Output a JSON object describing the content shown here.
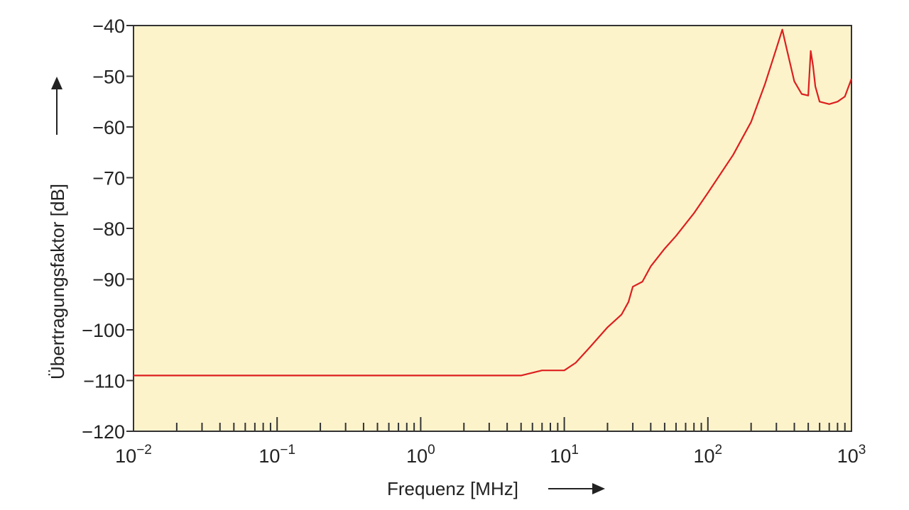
{
  "chart_data": {
    "type": "line",
    "xscale": "log",
    "xlim": [
      0.01,
      1000
    ],
    "ylim": [
      -120,
      -40
    ],
    "xlabel": "Frequenz [MHz]",
    "ylabel": "Übertragungsfaktor [dB]",
    "x_tick_labels": [
      {
        "base": "10",
        "exp": "−2"
      },
      {
        "base": "10",
        "exp": "−1"
      },
      {
        "base": "10",
        "exp": "0"
      },
      {
        "base": "10",
        "exp": "1"
      },
      {
        "base": "10",
        "exp": "2"
      },
      {
        "base": "10",
        "exp": "3"
      }
    ],
    "y_ticks": [
      -40,
      -50,
      -60,
      -70,
      -80,
      -90,
      -100,
      -110,
      -120
    ],
    "y_tick_labels": [
      "−40",
      "−50",
      "−60",
      "−70",
      "−80",
      "−90",
      "−100",
      "−110",
      "−120"
    ],
    "colors": {
      "plot_bg": "#fcf3cb",
      "line": "#dd1f1f",
      "axis": "#333333"
    },
    "series": [
      {
        "name": "Übertragungsfaktor",
        "x": [
          0.01,
          0.02,
          0.05,
          0.1,
          0.2,
          0.5,
          1,
          2,
          5,
          7,
          10,
          12,
          15,
          20,
          25,
          28,
          30,
          35,
          40,
          50,
          60,
          80,
          100,
          150,
          200,
          250,
          300,
          330,
          350,
          400,
          450,
          500,
          520,
          540,
          560,
          600,
          700,
          800,
          900,
          1000
        ],
        "y": [
          -109,
          -109,
          -109,
          -109,
          -109,
          -109,
          -109,
          -109,
          -109,
          -108,
          -108,
          -106.5,
          -103.5,
          -99.5,
          -97,
          -94.5,
          -91.5,
          -90.5,
          -87.5,
          -84,
          -81.5,
          -77,
          -73,
          -65.5,
          -59,
          -51.5,
          -44.5,
          -40.8,
          -44,
          -51,
          -53.5,
          -53.8,
          -45,
          -48,
          -52,
          -55,
          -55.5,
          -55,
          -54,
          -50.5
        ]
      }
    ]
  }
}
